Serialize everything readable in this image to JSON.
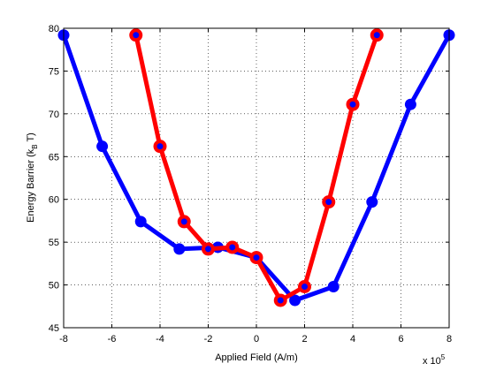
{
  "chart_data": {
    "type": "line",
    "title": "",
    "xlabel": "Applied Field (A/m)",
    "ylabel_main": "Energy Barrier (k",
    "ylabel_sub": "B",
    "ylabel_tail": " T)",
    "x_exponent_base": "x 10",
    "x_exponent_power": "5",
    "xlim": [
      -8,
      8
    ],
    "ylim": [
      45,
      80
    ],
    "xticks": [
      -8,
      -6,
      -4,
      -2,
      0,
      2,
      4,
      6,
      8
    ],
    "yticks": [
      45,
      50,
      55,
      60,
      65,
      70,
      75,
      80
    ],
    "grid": true,
    "series": [
      {
        "color": "#0000ff",
        "marker_fill": "#0000ff",
        "x": [
          -8,
          -6.4,
          -4.8,
          -3.2,
          -1.6,
          0,
          1.6,
          3.2,
          4.8,
          6.4,
          8
        ],
        "y": [
          79.2,
          66.2,
          57.4,
          54.2,
          54.4,
          53.2,
          48.2,
          49.8,
          59.7,
          71.1,
          79.2
        ]
      },
      {
        "color": "#ff0000",
        "marker_fill": "#0000ff",
        "x": [
          -5,
          -4,
          -3,
          -2,
          -1,
          0,
          1,
          2,
          3,
          4,
          5
        ],
        "y": [
          79.2,
          66.2,
          57.4,
          54.2,
          54.4,
          53.2,
          48.2,
          49.8,
          59.7,
          71.1,
          79.2
        ]
      }
    ]
  }
}
